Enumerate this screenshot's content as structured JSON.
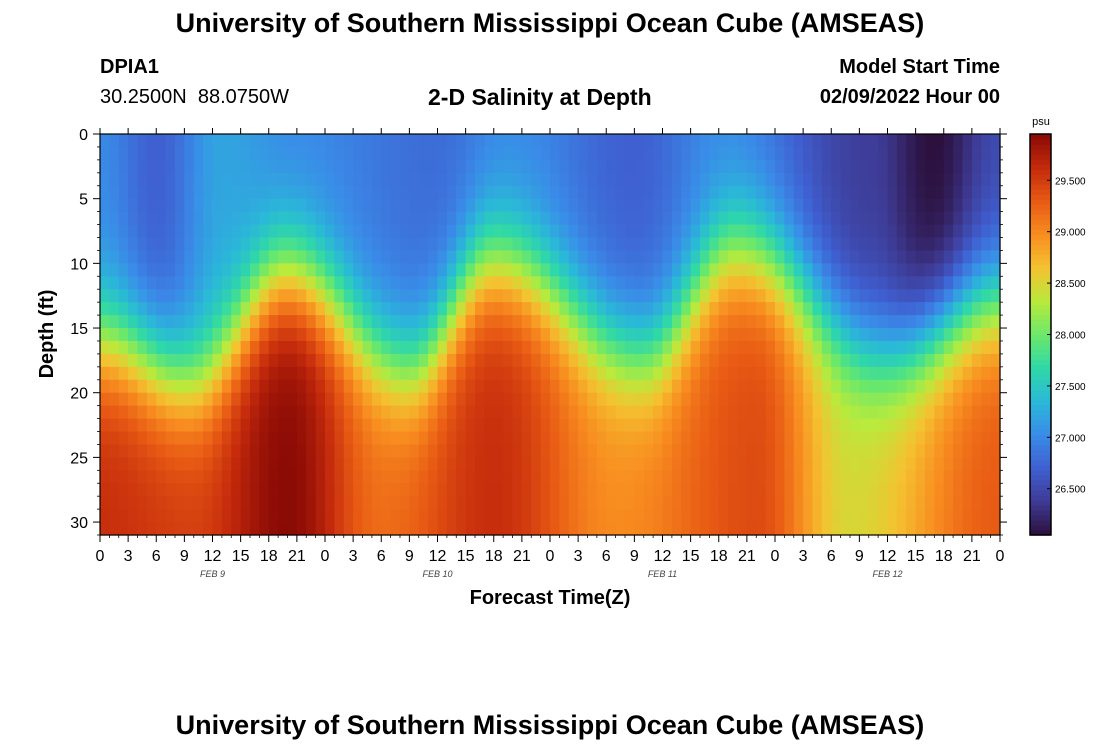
{
  "page": {
    "title": "University of Southern Mississippi Ocean Cube (AMSEAS)",
    "title_repeat": "University of Southern Mississippi Ocean Cube (AMSEAS)",
    "station_id": "DPIA1",
    "station_coords": "30.2500N  88.0750W",
    "subtitle": "2-D Salinity at Depth",
    "model_start_label": "Model Start Time",
    "model_start_value": "02/09/2022 Hour 00"
  },
  "chart_data": {
    "type": "heatmap",
    "title": "2-D Salinity at Depth",
    "xlabel": "Forecast Time(Z)",
    "ylabel": "Depth (ft)",
    "x_tick_labels": [
      "0",
      "3",
      "6",
      "9",
      "12",
      "15",
      "18",
      "21",
      "0",
      "3",
      "6",
      "9",
      "12",
      "15",
      "18",
      "21",
      "0",
      "3",
      "6",
      "9",
      "12",
      "15",
      "18",
      "21",
      "0",
      "3",
      "6",
      "9",
      "12",
      "15",
      "18",
      "21",
      "0"
    ],
    "x_range_hours": [
      0,
      96
    ],
    "day_labels": [
      {
        "label": "FEB 9",
        "hour": 12
      },
      {
        "label": "FEB 10",
        "hour": 36
      },
      {
        "label": "FEB 11",
        "hour": 60
      },
      {
        "label": "FEB 12",
        "hour": 84
      }
    ],
    "y_ticks": [
      0,
      5,
      10,
      15,
      20,
      25,
      30
    ],
    "ylim": [
      0,
      31
    ],
    "y_inverted": true,
    "colorbar": {
      "unit": "psu",
      "min": 26.05,
      "max": 29.95,
      "ticks": [
        26.5,
        27.0,
        27.5,
        28.0,
        28.5,
        29.0,
        29.5
      ],
      "tick_labels": [
        "26.500",
        "27.000",
        "27.500",
        "28.000",
        "28.500",
        "29.000",
        "29.500"
      ],
      "colormap": [
        "#2b0f3b",
        "#3e3a94",
        "#3f5fd0",
        "#3a8be8",
        "#2ab8d8",
        "#2fd8a8",
        "#6be86a",
        "#b9ea3c",
        "#f4c230",
        "#f88d20",
        "#e85a14",
        "#c42a0c",
        "#8a0a05"
      ]
    },
    "pycnocline_depth_ft": [
      {
        "hour": 0,
        "depth": 16
      },
      {
        "hour": 10,
        "depth": 19
      },
      {
        "hour": 20,
        "depth": 11
      },
      {
        "hour": 33,
        "depth": 18
      },
      {
        "hour": 42,
        "depth": 10
      },
      {
        "hour": 58,
        "depth": 17
      },
      {
        "hour": 68,
        "depth": 9
      },
      {
        "hour": 84,
        "depth": 17
      },
      {
        "hour": 96,
        "depth": 13
      }
    ],
    "surface_salinity_psu": [
      {
        "hour": 0,
        "value": 27.0
      },
      {
        "hour": 6,
        "value": 26.7
      },
      {
        "hour": 13,
        "value": 27.2
      },
      {
        "hour": 21,
        "value": 27.0
      },
      {
        "hour": 36,
        "value": 26.8
      },
      {
        "hour": 44,
        "value": 27.0
      },
      {
        "hour": 57,
        "value": 26.7
      },
      {
        "hour": 66,
        "value": 27.0
      },
      {
        "hour": 82,
        "value": 26.4
      },
      {
        "hour": 89,
        "value": 26.05
      },
      {
        "hour": 96,
        "value": 26.5
      }
    ],
    "bottom_salinity_psu": [
      {
        "hour": 0,
        "value": 29.6
      },
      {
        "hour": 10,
        "value": 29.5
      },
      {
        "hour": 20,
        "value": 29.95
      },
      {
        "hour": 30,
        "value": 29.2
      },
      {
        "hour": 42,
        "value": 29.6
      },
      {
        "hour": 55,
        "value": 29.0
      },
      {
        "hour": 70,
        "value": 29.4
      },
      {
        "hour": 80,
        "value": 28.5
      },
      {
        "hour": 96,
        "value": 29.3
      }
    ]
  }
}
